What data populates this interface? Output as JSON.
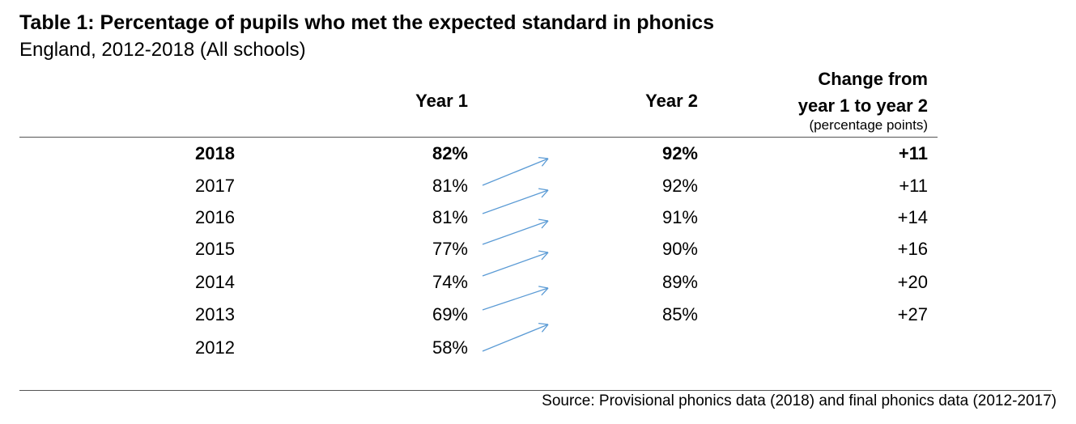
{
  "title": "Table 1: Percentage of pupils who met the expected standard in phonics",
  "subtitle": "England, 2012-2018 (All schools)",
  "headers": {
    "year1": "Year 1",
    "year2": "Year 2",
    "change_line1": "Change from",
    "change_line2": "year 1 to year 2",
    "change_unit": "(percentage points)"
  },
  "rows": [
    {
      "year": "2018",
      "year1": "82%",
      "year2": "92%",
      "change": "+11",
      "bold": true
    },
    {
      "year": "2017",
      "year1": "81%",
      "year2": "92%",
      "change": "+11",
      "bold": false
    },
    {
      "year": "2016",
      "year1": "81%",
      "year2": "91%",
      "change": "+14",
      "bold": false
    },
    {
      "year": "2015",
      "year1": "77%",
      "year2": "90%",
      "change": "+16",
      "bold": false
    },
    {
      "year": "2014",
      "year1": "74%",
      "year2": "89%",
      "change": "+20",
      "bold": false
    },
    {
      "year": "2013",
      "year1": "69%",
      "year2": "85%",
      "change": "+27",
      "bold": false
    },
    {
      "year": "2012",
      "year1": "58%",
      "year2": "",
      "change": "",
      "bold": false
    }
  ],
  "arrow_color": "#5b9bd5",
  "source": "Source: Provisional phonics data (2018) and final phonics data (2012-2017)"
}
